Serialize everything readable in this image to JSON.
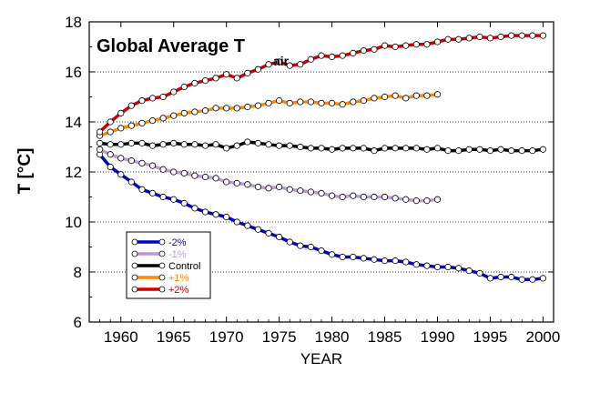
{
  "chart_data": {
    "type": "line",
    "title": "Global Average T",
    "title_subscript": "air",
    "xlabel": "YEAR",
    "ylabel": "T [°C]",
    "xlim": [
      1957,
      2001
    ],
    "ylim": [
      6,
      18
    ],
    "xticks": [
      1960,
      1965,
      1970,
      1975,
      1980,
      1985,
      1990,
      1995,
      2000
    ],
    "yticks": [
      6,
      8,
      10,
      12,
      14,
      16,
      18
    ],
    "grid": "horizontal dotted",
    "legend_position": "lower-left",
    "series": [
      {
        "name": "-2%",
        "color": "#0000cc",
        "x": [
          1958,
          1959,
          1960,
          1961,
          1962,
          1963,
          1964,
          1965,
          1966,
          1967,
          1968,
          1969,
          1970,
          1971,
          1972,
          1973,
          1974,
          1975,
          1976,
          1977,
          1978,
          1979,
          1980,
          1981,
          1982,
          1983,
          1984,
          1985,
          1986,
          1987,
          1988,
          1989,
          1990,
          1991,
          1992,
          1993,
          1994,
          1995,
          1996,
          1997,
          1998,
          1999,
          2000
        ],
        "values": [
          12.7,
          12.2,
          11.9,
          11.6,
          11.3,
          11.15,
          11.0,
          10.9,
          10.75,
          10.55,
          10.4,
          10.3,
          10.2,
          10.0,
          9.85,
          9.7,
          9.55,
          9.4,
          9.2,
          9.05,
          9.0,
          8.85,
          8.7,
          8.6,
          8.6,
          8.55,
          8.5,
          8.45,
          8.45,
          8.4,
          8.3,
          8.25,
          8.2,
          8.2,
          8.15,
          8.05,
          7.95,
          7.75,
          7.8,
          7.8,
          7.7,
          7.7,
          7.75
        ]
      },
      {
        "name": "-1%",
        "color": "#bb99dd",
        "x": [
          1958,
          1959,
          1960,
          1961,
          1962,
          1963,
          1964,
          1965,
          1966,
          1967,
          1968,
          1969,
          1970,
          1971,
          1972,
          1973,
          1974,
          1975,
          1976,
          1977,
          1978,
          1979,
          1980,
          1981,
          1982,
          1983,
          1984,
          1985,
          1986,
          1987,
          1988,
          1989,
          1990
        ],
        "values": [
          12.9,
          12.7,
          12.55,
          12.45,
          12.35,
          12.25,
          12.1,
          12.0,
          11.95,
          11.85,
          11.8,
          11.75,
          11.6,
          11.55,
          11.5,
          11.4,
          11.35,
          11.4,
          11.3,
          11.25,
          11.2,
          11.15,
          11.05,
          11.0,
          11.05,
          11.0,
          11.0,
          11.0,
          10.95,
          10.9,
          10.85,
          10.85,
          10.9
        ]
      },
      {
        "name": "Control",
        "color": "#000000",
        "x": [
          1958,
          1959,
          1960,
          1961,
          1962,
          1963,
          1964,
          1965,
          1966,
          1967,
          1968,
          1969,
          1970,
          1971,
          1972,
          1973,
          1974,
          1975,
          1976,
          1977,
          1978,
          1979,
          1980,
          1981,
          1982,
          1983,
          1984,
          1985,
          1986,
          1987,
          1988,
          1989,
          1990,
          1991,
          1992,
          1993,
          1994,
          1995,
          1996,
          1997,
          1998,
          1999,
          2000
        ],
        "values": [
          13.15,
          13.1,
          13.1,
          13.15,
          13.15,
          13.05,
          13.1,
          13.15,
          13.1,
          13.1,
          13.05,
          13.1,
          12.95,
          13.05,
          13.2,
          13.15,
          13.1,
          13.05,
          13.05,
          13.0,
          12.95,
          12.95,
          12.9,
          12.95,
          12.95,
          12.95,
          12.85,
          12.95,
          12.95,
          12.95,
          12.95,
          12.9,
          12.95,
          12.85,
          12.85,
          12.9,
          12.9,
          12.85,
          12.9,
          12.85,
          12.85,
          12.85,
          12.9
        ]
      },
      {
        "name": "+1%",
        "color": "#ff8800",
        "x": [
          1958,
          1959,
          1960,
          1961,
          1962,
          1963,
          1964,
          1965,
          1966,
          1967,
          1968,
          1969,
          1970,
          1971,
          1972,
          1973,
          1974,
          1975,
          1976,
          1977,
          1978,
          1979,
          1980,
          1981,
          1982,
          1983,
          1984,
          1985,
          1986,
          1987,
          1988,
          1989,
          1990
        ],
        "values": [
          13.45,
          13.6,
          13.75,
          13.85,
          13.95,
          14.05,
          14.15,
          14.25,
          14.35,
          14.4,
          14.45,
          14.55,
          14.55,
          14.55,
          14.6,
          14.65,
          14.75,
          14.85,
          14.75,
          14.8,
          14.8,
          14.75,
          14.75,
          14.7,
          14.8,
          14.85,
          14.95,
          15.0,
          15.05,
          14.95,
          15.05,
          15.05,
          15.1
        ]
      },
      {
        "name": "+2%",
        "color": "#cc0000",
        "x": [
          1958,
          1959,
          1960,
          1961,
          1962,
          1963,
          1964,
          1965,
          1966,
          1967,
          1968,
          1969,
          1970,
          1971,
          1972,
          1973,
          1974,
          1975,
          1976,
          1977,
          1978,
          1979,
          1980,
          1981,
          1982,
          1983,
          1984,
          1985,
          1986,
          1987,
          1988,
          1989,
          1990,
          1991,
          1992,
          1993,
          1994,
          1995,
          1996,
          1997,
          1998,
          1999,
          2000
        ],
        "values": [
          13.6,
          14.0,
          14.35,
          14.65,
          14.85,
          14.95,
          15.0,
          15.2,
          15.4,
          15.55,
          15.65,
          15.75,
          15.9,
          15.75,
          15.95,
          16.1,
          16.3,
          16.4,
          16.25,
          16.3,
          16.5,
          16.65,
          16.6,
          16.65,
          16.75,
          16.85,
          16.9,
          17.05,
          17.0,
          17.05,
          17.1,
          17.1,
          17.2,
          17.3,
          17.3,
          17.35,
          17.4,
          17.35,
          17.4,
          17.45,
          17.45,
          17.45,
          17.45
        ]
      }
    ]
  }
}
